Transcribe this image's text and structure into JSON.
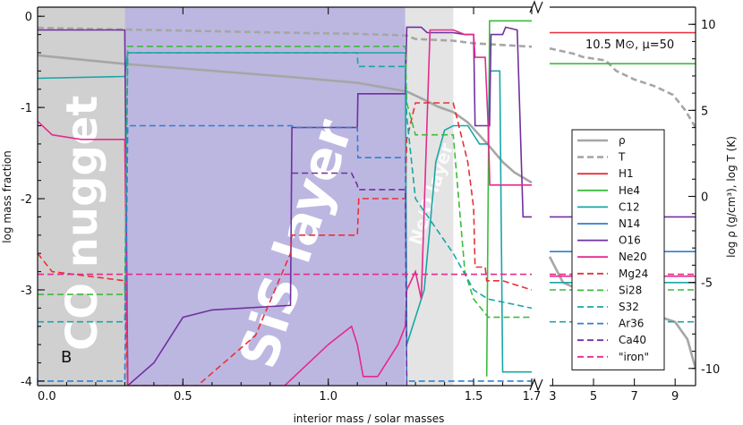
{
  "chart_data": {
    "type": "line",
    "panel_letter": "B",
    "annotation": "10.5 M⊙, μ=50",
    "xlabel": "interior mass / solar masses",
    "ylabel_left": "log mass fraction",
    "ylabel_right": "log ρ (g/cm³), log T (K)",
    "xlim_left_panel": [
      0.0,
      1.7
    ],
    "xlim_right_panel": [
      2.85,
      10.0
    ],
    "ylim_left": [
      -4.05,
      0.1
    ],
    "ylim_right": [
      -11,
      11
    ],
    "xticks_left": [
      0.0,
      0.5,
      1.0,
      1.5,
      1.7
    ],
    "xtick_labels_left": [
      "0.0",
      "0.5",
      "1.0",
      "1.5",
      "1.7"
    ],
    "xticks_right": [
      3,
      5,
      7,
      9
    ],
    "xtick_labels_right": [
      "3",
      "5",
      "7",
      "9"
    ],
    "yticks_left": [
      0,
      -1,
      -2,
      -3,
      -4
    ],
    "ytick_labels_left": [
      "0",
      "-1",
      "-2",
      "-3",
      "-4"
    ],
    "yticks_right": [
      10,
      5,
      0,
      -5,
      -10
    ],
    "ytick_labels_right": [
      "10",
      "5",
      "0",
      "-5",
      "-10"
    ],
    "regions": [
      {
        "label": "CO nugget",
        "x": [
          0.0,
          0.3
        ],
        "color": "#d0d0d0"
      },
      {
        "label": "SiS layer",
        "x": [
          0.3,
          1.265
        ],
        "color": "#bcb7e0"
      },
      {
        "label": "Ne/O layer",
        "x": [
          1.265,
          1.43
        ],
        "color": "#e4e4e4"
      }
    ],
    "series": [
      {
        "name": "ρ",
        "color": "#a6a6a6",
        "dash": "solid",
        "axis": "right",
        "points": [
          [
            0.0,
            8.2
          ],
          [
            0.3,
            7.7
          ],
          [
            0.6,
            7.3
          ],
          [
            0.9,
            6.9
          ],
          [
            1.1,
            6.6
          ],
          [
            1.27,
            6.1
          ],
          [
            1.32,
            5.7
          ],
          [
            1.38,
            5.2
          ],
          [
            1.43,
            4.9
          ],
          [
            1.48,
            4.3
          ],
          [
            1.55,
            3.0
          ],
          [
            1.6,
            2.0
          ],
          [
            1.64,
            1.4
          ],
          [
            1.7,
            0.8
          ],
          [
            2.85,
            -3.5
          ],
          [
            3.5,
            -5.0
          ],
          [
            5.0,
            -5.8
          ],
          [
            7.0,
            -6.5
          ],
          [
            9.0,
            -7.3
          ],
          [
            9.6,
            -8.3
          ],
          [
            10.0,
            -10.0
          ]
        ]
      },
      {
        "name": "T",
        "color": "#a6a6a6",
        "dash": "dash",
        "axis": "right",
        "points": [
          [
            0.0,
            9.8
          ],
          [
            0.3,
            9.7
          ],
          [
            0.6,
            9.6
          ],
          [
            0.9,
            9.5
          ],
          [
            1.1,
            9.45
          ],
          [
            1.27,
            9.35
          ],
          [
            1.3,
            9.15
          ],
          [
            1.43,
            9.05
          ],
          [
            1.5,
            8.9
          ],
          [
            1.6,
            8.8
          ],
          [
            1.7,
            8.7
          ],
          [
            2.85,
            8.6
          ],
          [
            4.0,
            8.3
          ],
          [
            4.5,
            8.1
          ],
          [
            5.6,
            7.9
          ],
          [
            6.1,
            7.3
          ],
          [
            7.0,
            6.8
          ],
          [
            8.0,
            6.4
          ],
          [
            8.9,
            5.9
          ],
          [
            9.5,
            5.0
          ],
          [
            10.0,
            4.0
          ]
        ]
      },
      {
        "name": "H1",
        "color": "#e8303a",
        "dash": "solid",
        "axis": "left",
        "points": [
          [
            2.85,
            -0.18
          ],
          [
            10.0,
            -0.18
          ]
        ]
      },
      {
        "name": "He4",
        "color": "#3dbb3d",
        "dash": "solid",
        "axis": "left",
        "points": [
          [
            1.545,
            -3.95
          ],
          [
            1.555,
            -0.05
          ],
          [
            1.7,
            -0.05
          ],
          [
            2.85,
            -0.52
          ],
          [
            10.0,
            -0.52
          ]
        ]
      },
      {
        "name": "C12",
        "color": "#1aa6a6",
        "dash": "solid",
        "axis": "left",
        "points": [
          [
            0.0,
            -0.68
          ],
          [
            0.3,
            -0.66
          ],
          [
            0.31,
            -0.4
          ],
          [
            1.265,
            -0.4
          ],
          [
            1.27,
            -3.6
          ],
          [
            1.33,
            -3.0
          ],
          [
            1.37,
            -1.6
          ],
          [
            1.4,
            -1.25
          ],
          [
            1.43,
            -1.2
          ],
          [
            1.48,
            -1.2
          ],
          [
            1.5,
            -1.3
          ],
          [
            1.52,
            -1.4
          ],
          [
            1.55,
            -1.4
          ],
          [
            1.556,
            -0.6
          ],
          [
            1.59,
            -0.6
          ],
          [
            1.6,
            -3.9
          ],
          [
            1.7,
            -3.9
          ],
          [
            2.85,
            -2.92
          ],
          [
            10.0,
            -2.92
          ]
        ]
      },
      {
        "name": "N14",
        "color": "#2d7fd4",
        "dash": "solid",
        "axis": "left",
        "points": [
          [
            2.85,
            -2.58
          ],
          [
            10.0,
            -2.58
          ]
        ]
      },
      {
        "name": "O16",
        "color": "#7030a0",
        "dash": "solid",
        "axis": "left",
        "points": [
          [
            0.0,
            -0.15
          ],
          [
            0.3,
            -0.15
          ],
          [
            0.31,
            -4.05
          ],
          [
            0.4,
            -3.8
          ],
          [
            0.5,
            -3.3
          ],
          [
            0.6,
            -3.22
          ],
          [
            0.87,
            -3.17
          ],
          [
            0.875,
            -1.22
          ],
          [
            1.1,
            -1.22
          ],
          [
            1.102,
            -0.85
          ],
          [
            1.265,
            -0.85
          ],
          [
            1.27,
            -0.12
          ],
          [
            1.32,
            -0.12
          ],
          [
            1.34,
            -0.18
          ],
          [
            1.43,
            -0.18
          ],
          [
            1.47,
            -0.2
          ],
          [
            1.5,
            -0.2
          ],
          [
            1.505,
            -1.2
          ],
          [
            1.555,
            -1.2
          ],
          [
            1.56,
            -0.2
          ],
          [
            1.6,
            -0.2
          ],
          [
            1.61,
            -0.12
          ],
          [
            1.65,
            -0.15
          ],
          [
            1.67,
            -2.2
          ],
          [
            1.7,
            -2.2
          ],
          [
            2.85,
            -2.2
          ],
          [
            10.0,
            -2.2
          ]
        ]
      },
      {
        "name": "Ne20",
        "color": "#e52a8f",
        "dash": "solid",
        "axis": "left",
        "points": [
          [
            0.0,
            -1.15
          ],
          [
            0.05,
            -1.3
          ],
          [
            0.15,
            -1.35
          ],
          [
            0.3,
            -1.35
          ],
          [
            0.31,
            -4.05
          ],
          [
            0.85,
            -4.05
          ],
          [
            0.9,
            -3.9
          ],
          [
            1.0,
            -3.6
          ],
          [
            1.08,
            -3.4
          ],
          [
            1.1,
            -3.6
          ],
          [
            1.12,
            -3.95
          ],
          [
            1.17,
            -3.95
          ],
          [
            1.24,
            -3.6
          ],
          [
            1.265,
            -3.4
          ],
          [
            1.27,
            -3.0
          ],
          [
            1.3,
            -2.8
          ],
          [
            1.32,
            -3.1
          ],
          [
            1.35,
            -0.15
          ],
          [
            1.43,
            -0.15
          ],
          [
            1.47,
            -0.2
          ],
          [
            1.5,
            -0.2
          ],
          [
            1.505,
            -0.45
          ],
          [
            1.54,
            -0.45
          ],
          [
            1.55,
            -1.2
          ],
          [
            1.556,
            -1.85
          ],
          [
            1.6,
            -1.85
          ],
          [
            1.7,
            -1.85
          ],
          [
            2.85,
            -2.85
          ],
          [
            10.0,
            -2.85
          ]
        ]
      },
      {
        "name": "Mg24",
        "color": "#e8303a",
        "dash": "dash",
        "axis": "left",
        "points": [
          [
            0.0,
            -2.6
          ],
          [
            0.05,
            -2.8
          ],
          [
            0.3,
            -2.9
          ],
          [
            0.31,
            -4.05
          ],
          [
            0.55,
            -4.05
          ],
          [
            0.75,
            -3.5
          ],
          [
            0.87,
            -2.6
          ],
          [
            0.875,
            -2.4
          ],
          [
            1.1,
            -2.4
          ],
          [
            1.105,
            -2.0
          ],
          [
            1.265,
            -2.0
          ],
          [
            1.27,
            -1.35
          ],
          [
            1.3,
            -0.95
          ],
          [
            1.43,
            -0.95
          ],
          [
            1.48,
            -1.6
          ],
          [
            1.5,
            -2.1
          ],
          [
            1.505,
            -2.75
          ],
          [
            1.54,
            -2.75
          ],
          [
            1.545,
            -2.9
          ],
          [
            1.6,
            -2.9
          ],
          [
            1.7,
            -3.0
          ],
          [
            10.0,
            -3.0
          ]
        ]
      },
      {
        "name": "Si28",
        "color": "#3dbb3d",
        "dash": "dash",
        "axis": "left",
        "points": [
          [
            0.0,
            -3.05
          ],
          [
            0.3,
            -3.05
          ],
          [
            0.31,
            -0.33
          ],
          [
            1.265,
            -0.33
          ],
          [
            1.27,
            -0.95
          ],
          [
            1.3,
            -1.3
          ],
          [
            1.43,
            -1.3
          ],
          [
            1.47,
            -2.8
          ],
          [
            1.5,
            -3.1
          ],
          [
            1.55,
            -3.3
          ],
          [
            1.7,
            -3.3
          ],
          [
            2.85,
            -3.0
          ],
          [
            10.0,
            -3.0
          ]
        ]
      },
      {
        "name": "S32",
        "color": "#1aa6a6",
        "dash": "dash",
        "axis": "left",
        "points": [
          [
            0.0,
            -3.35
          ],
          [
            0.3,
            -3.35
          ],
          [
            0.31,
            -0.4
          ],
          [
            1.1,
            -0.4
          ],
          [
            1.102,
            -0.55
          ],
          [
            1.265,
            -0.55
          ],
          [
            1.27,
            -1.1
          ],
          [
            1.3,
            -2.0
          ],
          [
            1.43,
            -2.6
          ],
          [
            1.5,
            -3.0
          ],
          [
            1.55,
            -3.1
          ],
          [
            1.7,
            -3.2
          ],
          [
            2.85,
            -3.35
          ],
          [
            10.0,
            -3.35
          ]
        ]
      },
      {
        "name": "Ar36",
        "color": "#2d7fd4",
        "dash": "dash",
        "axis": "left",
        "points": [
          [
            0.0,
            -4.0
          ],
          [
            0.3,
            -4.0
          ],
          [
            0.31,
            -1.2
          ],
          [
            0.875,
            -1.2
          ],
          [
            0.88,
            -1.22
          ],
          [
            1.1,
            -1.22
          ],
          [
            1.102,
            -1.55
          ],
          [
            1.265,
            -1.55
          ],
          [
            1.27,
            -4.0
          ],
          [
            1.7,
            -4.0
          ],
          [
            10.0,
            -4.0
          ]
        ]
      },
      {
        "name": "Ca40",
        "color": "#7030a0",
        "dash": "dash",
        "axis": "left",
        "points": [
          [
            0.875,
            -1.72
          ],
          [
            1.08,
            -1.72
          ],
          [
            1.1,
            -1.85
          ],
          [
            1.102,
            -1.9
          ],
          [
            1.265,
            -1.9
          ],
          [
            1.27,
            -4.05
          ]
        ]
      },
      {
        "name": "\"iron\"",
        "color": "#e52a8f",
        "dash": "dash",
        "axis": "left",
        "points": [
          [
            0.0,
            -2.83
          ],
          [
            1.7,
            -2.83
          ],
          [
            2.85,
            -2.83
          ],
          [
            10.0,
            -2.83
          ]
        ]
      }
    ],
    "legend": {
      "placement": "right-center"
    }
  }
}
